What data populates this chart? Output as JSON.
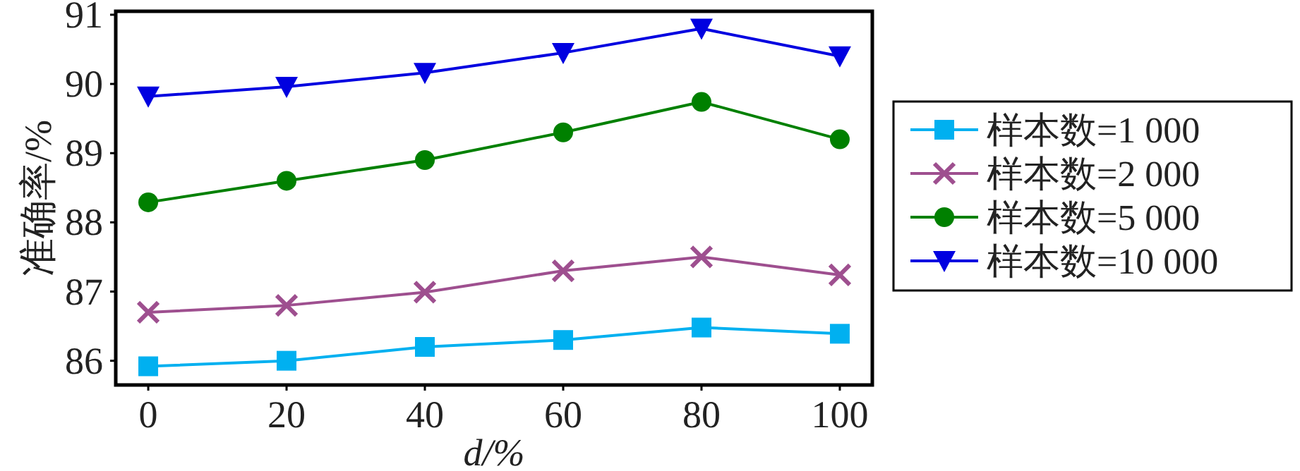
{
  "chart_data": {
    "type": "line",
    "xlabel": "d/%",
    "ylabel": "准确率/%",
    "x": [
      0,
      20,
      40,
      60,
      80,
      100
    ],
    "xlim": [
      -4.7,
      104.7
    ],
    "xticks": [
      0,
      20,
      40,
      60,
      80,
      100
    ],
    "ylim": [
      85.65,
      91.05
    ],
    "yticks": [
      86,
      87,
      88,
      89,
      90,
      91
    ],
    "grid": false,
    "legend": "right",
    "line_style": "solid",
    "series": [
      {
        "name": "样本数=1 000",
        "color": "#00b0f0",
        "marker": "square",
        "values": [
          85.92,
          86.0,
          86.2,
          86.3,
          86.48,
          86.39
        ]
      },
      {
        "name": "样本数=2 000",
        "color": "#9e4f8f",
        "marker": "cross",
        "values": [
          86.7,
          86.8,
          86.99,
          87.3,
          87.5,
          87.24
        ]
      },
      {
        "name": "样本数=5 000",
        "color": "#008000",
        "marker": "circle",
        "values": [
          88.29,
          88.6,
          88.9,
          89.3,
          89.74,
          89.2
        ]
      },
      {
        "name": "样本数=10 000",
        "color": "#0000e0",
        "marker": "triangle",
        "values": [
          89.82,
          89.96,
          90.16,
          90.45,
          90.8,
          90.4
        ]
      }
    ]
  }
}
